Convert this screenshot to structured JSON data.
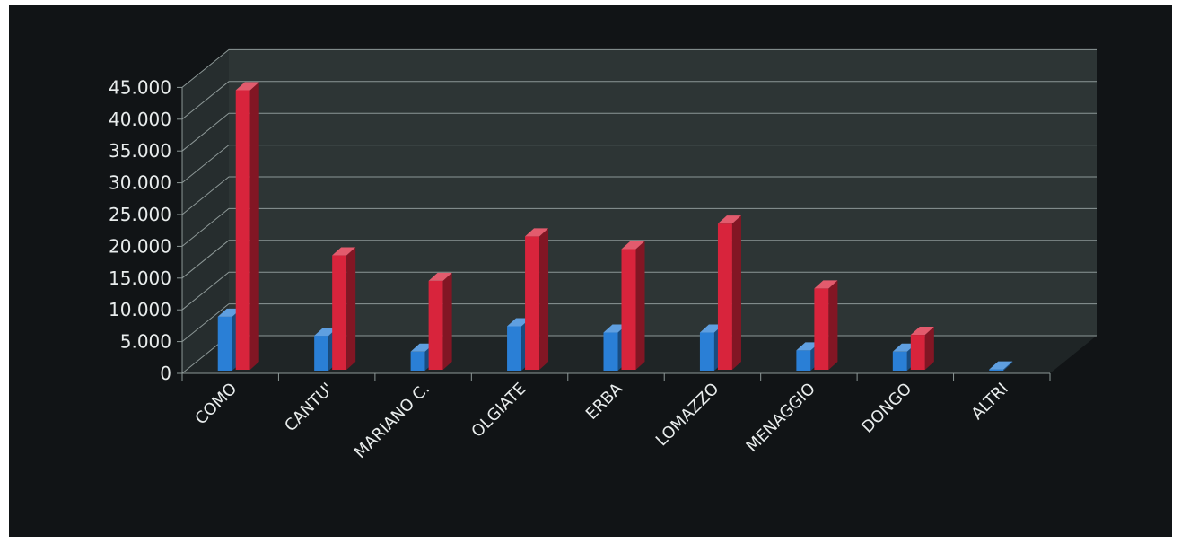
{
  "chart_data": {
    "type": "bar",
    "title": "",
    "xlabel": "",
    "ylabel": "",
    "categories": [
      "COMO",
      "CANTU'",
      "MARIANO C.",
      "OLGIATE",
      "ERBA",
      "LOMAZZO",
      "MENAGGIO",
      "DONGO",
      "ALTRI"
    ],
    "series": [
      {
        "color": "#2a7fd6",
        "values": [
          8500,
          5500,
          3000,
          7000,
          6000,
          6000,
          3200,
          3000,
          200
        ]
      },
      {
        "color": "#d8243c",
        "values": [
          44000,
          18000,
          14000,
          21000,
          19000,
          23000,
          12800,
          5500,
          0
        ]
      }
    ],
    "ylim": [
      0,
      45000
    ],
    "yticks": [
      "0",
      "5.000",
      "10.000",
      "15.000",
      "20.000",
      "25.000",
      "30.000",
      "35.000",
      "40.000",
      "45.000"
    ],
    "grid": true,
    "legend": "none",
    "style": "3d-clustered-columns",
    "background": "#111416"
  }
}
